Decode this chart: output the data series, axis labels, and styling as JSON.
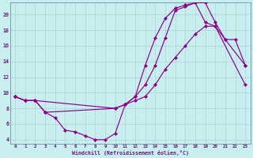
{
  "xlabel": "Windchill (Refroidissement éolien,°C)",
  "bg_color": "#c8eef0",
  "grid_color": "#aed4d8",
  "line_color": "#8b008b",
  "xlim": [
    -0.5,
    23.5
  ],
  "ylim": [
    3.5,
    21.5
  ],
  "yticks": [
    4,
    6,
    8,
    10,
    12,
    14,
    16,
    18,
    20
  ],
  "xticks": [
    0,
    1,
    2,
    3,
    4,
    5,
    6,
    7,
    8,
    9,
    10,
    11,
    12,
    13,
    14,
    15,
    16,
    17,
    18,
    19,
    20,
    21,
    22,
    23
  ],
  "curve1_x": [
    0,
    1,
    2,
    3,
    4,
    5,
    6,
    7,
    8,
    9,
    10,
    11,
    12,
    13,
    14,
    15,
    16,
    17,
    18,
    19,
    20,
    21,
    23
  ],
  "curve1_y": [
    9.5,
    9.0,
    9.0,
    7.5,
    6.8,
    5.2,
    5.0,
    4.5,
    4.0,
    4.0,
    4.8,
    8.5,
    9.5,
    13.5,
    17.0,
    19.5,
    20.8,
    21.2,
    21.5,
    21.5,
    19.0,
    16.8,
    13.5
  ],
  "curve2_x": [
    0,
    1,
    2,
    3,
    10,
    11,
    12,
    13,
    14,
    15,
    16,
    17,
    18,
    19,
    20,
    21,
    22,
    23
  ],
  "curve2_y": [
    9.5,
    9.0,
    9.0,
    7.5,
    8.0,
    8.5,
    9.5,
    11.0,
    13.5,
    17.0,
    20.5,
    21.0,
    21.5,
    19.0,
    18.5,
    16.8,
    16.8,
    13.5
  ],
  "curve3_x": [
    0,
    1,
    2,
    10,
    11,
    12,
    13,
    14,
    15,
    16,
    17,
    18,
    19,
    20,
    23
  ],
  "curve3_y": [
    9.5,
    9.0,
    9.0,
    8.0,
    8.5,
    9.0,
    9.5,
    11.0,
    13.0,
    14.5,
    16.0,
    17.5,
    18.5,
    18.5,
    11.0
  ]
}
